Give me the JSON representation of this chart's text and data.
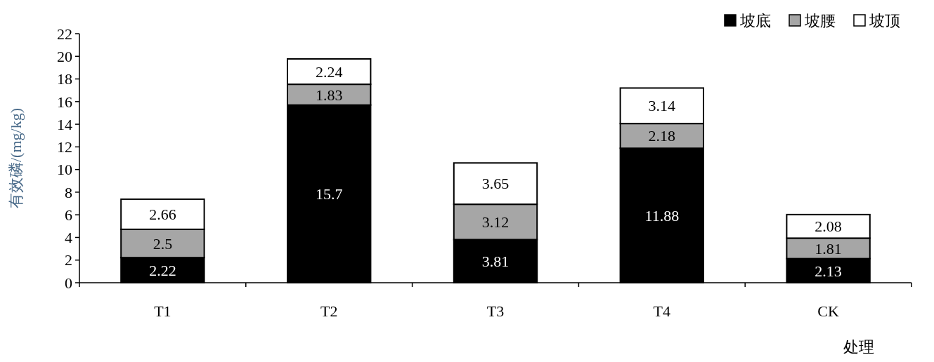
{
  "chart_data": {
    "type": "bar",
    "stacked": true,
    "ylabel": "有效磷/(mg/kg)",
    "xlabel": "处理",
    "categories": [
      "T1",
      "T2",
      "T3",
      "T4",
      "CK"
    ],
    "series": [
      {
        "name": "坡底",
        "color": "#000000",
        "values": [
          2.22,
          15.7,
          3.81,
          11.88,
          2.13
        ]
      },
      {
        "name": "坡腰",
        "color": "#a6a6a6",
        "values": [
          2.5,
          1.83,
          3.12,
          2.18,
          1.81
        ]
      },
      {
        "name": "坡顶",
        "color": "#ffffff",
        "values": [
          2.66,
          2.24,
          3.65,
          3.14,
          2.08
        ]
      }
    ],
    "ylim": [
      0,
      22
    ],
    "yticks": [
      0,
      2,
      4,
      6,
      8,
      10,
      12,
      14,
      16,
      18,
      20,
      22
    ],
    "grid": false,
    "legend": "top right",
    "data_labels": true
  }
}
